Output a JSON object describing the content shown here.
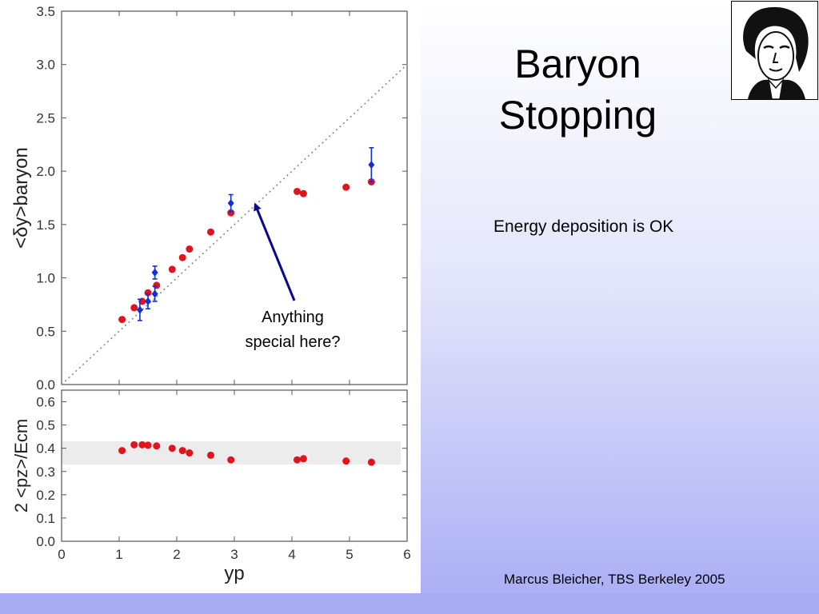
{
  "slide": {
    "title_line1": "Baryon",
    "title_line2": "Stopping",
    "subtitle": "Energy deposition is OK",
    "footer": "Marcus Bleicher, TBS Berkeley 2005",
    "annotation_line1": "Anything",
    "annotation_line2": "special here?",
    "portrait_icon": "goethe-portrait-logo"
  },
  "chart_data": [
    {
      "type": "scatter",
      "ylabel": "<δy>baryon",
      "xlim": [
        0,
        6
      ],
      "ylim": [
        0,
        3.5
      ],
      "y_ticks": [
        "0.0",
        "0.5",
        "1.0",
        "1.5",
        "2.0",
        "2.5",
        "3.0",
        "3.5"
      ],
      "reference_line": {
        "style": "dotted",
        "description": "y = x / 2 diagonal"
      },
      "series": [
        {
          "color": "#e0141e",
          "marker": "circle",
          "points": [
            {
              "x": 1.05,
              "y": 0.61
            },
            {
              "x": 1.26,
              "y": 0.72
            },
            {
              "x": 1.4,
              "y": 0.78
            },
            {
              "x": 1.5,
              "y": 0.86
            },
            {
              "x": 1.65,
              "y": 0.93
            },
            {
              "x": 1.92,
              "y": 1.08
            },
            {
              "x": 2.1,
              "y": 1.19
            },
            {
              "x": 2.22,
              "y": 1.27
            },
            {
              "x": 2.59,
              "y": 1.43
            },
            {
              "x": 2.94,
              "y": 1.61
            },
            {
              "x": 4.09,
              "y": 1.81
            },
            {
              "x": 4.2,
              "y": 1.79
            },
            {
              "x": 4.94,
              "y": 1.85
            },
            {
              "x": 5.38,
              "y": 1.9
            }
          ]
        },
        {
          "color": "#1230d6",
          "marker": "diamond",
          "points": [
            {
              "x": 1.36,
              "y": 0.7,
              "err": 0.1
            },
            {
              "x": 1.5,
              "y": 0.78,
              "err": 0.07
            },
            {
              "x": 1.62,
              "y": 0.85,
              "err": 0.07
            },
            {
              "x": 1.62,
              "y": 1.05,
              "err": 0.06
            },
            {
              "x": 2.94,
              "y": 1.7,
              "err": 0.08
            },
            {
              "x": 5.38,
              "y": 2.06,
              "err": 0.16
            }
          ]
        }
      ]
    },
    {
      "type": "scatter",
      "xlabel": "yp",
      "ylabel": "2 <pz>/Ecm",
      "xlim": [
        0,
        6
      ],
      "ylim": [
        0,
        0.65
      ],
      "x_ticks": [
        "0",
        "1",
        "2",
        "3",
        "4",
        "5",
        "6"
      ],
      "y_ticks": [
        "0.0",
        "0.1",
        "0.2",
        "0.3",
        "0.4",
        "0.5",
        "0.6"
      ],
      "band": [
        0.33,
        0.43
      ],
      "series": [
        {
          "color": "#e0141e",
          "marker": "circle",
          "points": [
            {
              "x": 1.05,
              "y": 0.39
            },
            {
              "x": 1.26,
              "y": 0.415
            },
            {
              "x": 1.4,
              "y": 0.415
            },
            {
              "x": 1.5,
              "y": 0.413
            },
            {
              "x": 1.65,
              "y": 0.41
            },
            {
              "x": 1.92,
              "y": 0.4
            },
            {
              "x": 2.1,
              "y": 0.39
            },
            {
              "x": 2.22,
              "y": 0.38
            },
            {
              "x": 2.59,
              "y": 0.37
            },
            {
              "x": 2.94,
              "y": 0.35
            },
            {
              "x": 4.09,
              "y": 0.35
            },
            {
              "x": 4.2,
              "y": 0.355
            },
            {
              "x": 4.94,
              "y": 0.345
            },
            {
              "x": 5.38,
              "y": 0.34
            }
          ]
        }
      ]
    }
  ]
}
